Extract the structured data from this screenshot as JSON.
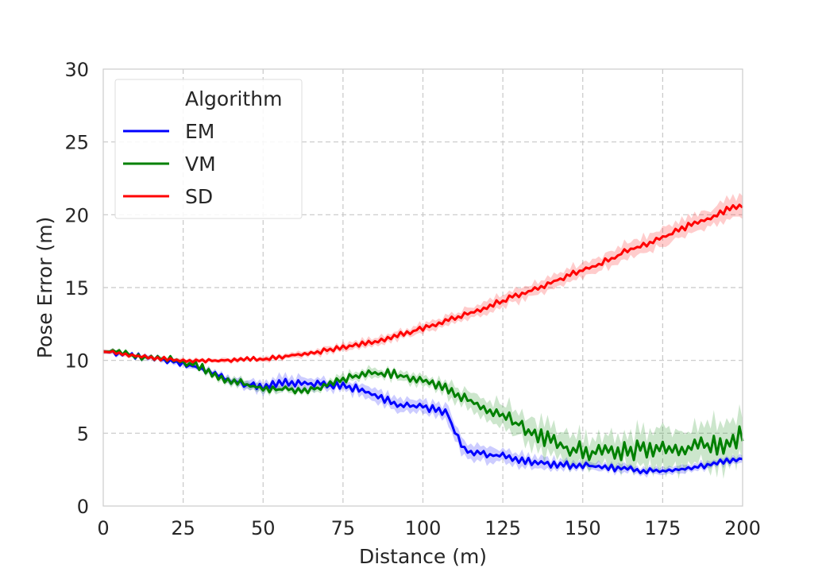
{
  "chart_data": {
    "type": "line",
    "title": "",
    "xlabel": "Distance (m)",
    "ylabel": "Pose Error (m)",
    "xlim": [
      0,
      200
    ],
    "ylim": [
      0,
      30
    ],
    "xticks": [
      0,
      25,
      50,
      75,
      100,
      125,
      150,
      175,
      200
    ],
    "yticks": [
      0,
      5,
      10,
      15,
      20,
      25,
      30
    ],
    "grid": true,
    "legend": {
      "title": "Algorithm",
      "position": "top-left"
    },
    "series": [
      {
        "name": "EM",
        "color": "#0000ff",
        "x": [
          0,
          5,
          10,
          20,
          25,
          30,
          35,
          40,
          45,
          50,
          55,
          60,
          65,
          70,
          75,
          80,
          85,
          90,
          95,
          100,
          105,
          108,
          110,
          112,
          115,
          120,
          125,
          130,
          135,
          140,
          145,
          150,
          155,
          160,
          165,
          170,
          175,
          180,
          185,
          190,
          195,
          200
        ],
        "mean": [
          10.6,
          10.5,
          10.3,
          10.0,
          9.8,
          9.5,
          9.0,
          8.6,
          8.3,
          8.2,
          8.4,
          8.5,
          8.4,
          8.3,
          8.3,
          8.0,
          7.6,
          7.1,
          6.9,
          6.8,
          6.6,
          6.2,
          5.0,
          4.2,
          3.7,
          3.6,
          3.4,
          3.2,
          3.0,
          2.9,
          2.8,
          2.8,
          2.7,
          2.6,
          2.5,
          2.4,
          2.4,
          2.5,
          2.6,
          2.8,
          3.1,
          3.3
        ],
        "band": [
          0.15,
          0.15,
          0.15,
          0.15,
          0.2,
          0.2,
          0.2,
          0.25,
          0.3,
          0.35,
          0.45,
          0.45,
          0.4,
          0.35,
          0.35,
          0.4,
          0.45,
          0.45,
          0.4,
          0.4,
          0.45,
          0.6,
          0.7,
          0.6,
          0.55,
          0.5,
          0.5,
          0.45,
          0.4,
          0.35,
          0.35,
          0.3,
          0.3,
          0.3,
          0.3,
          0.25,
          0.25,
          0.25,
          0.25,
          0.25,
          0.25,
          0.25
        ],
        "noise": 0.35
      },
      {
        "name": "VM",
        "color": "#008000",
        "x": [
          0,
          5,
          10,
          20,
          25,
          30,
          35,
          40,
          45,
          50,
          55,
          60,
          65,
          70,
          75,
          80,
          85,
          90,
          95,
          100,
          105,
          110,
          115,
          120,
          125,
          130,
          135,
          140,
          145,
          150,
          155,
          160,
          165,
          170,
          175,
          180,
          185,
          190,
          195,
          200
        ],
        "mean": [
          10.6,
          10.6,
          10.3,
          10.1,
          9.9,
          9.6,
          9.0,
          8.6,
          8.3,
          8.1,
          8.0,
          8.0,
          8.0,
          8.3,
          8.7,
          9.0,
          9.1,
          9.1,
          8.9,
          8.6,
          8.3,
          7.8,
          7.1,
          6.7,
          6.2,
          5.6,
          5.0,
          4.4,
          4.0,
          3.8,
          3.7,
          3.7,
          3.8,
          3.9,
          4.0,
          4.0,
          4.1,
          4.2,
          4.4,
          4.6
        ],
        "band": [
          0.15,
          0.15,
          0.15,
          0.15,
          0.2,
          0.2,
          0.2,
          0.25,
          0.25,
          0.25,
          0.25,
          0.25,
          0.25,
          0.25,
          0.3,
          0.3,
          0.3,
          0.3,
          0.3,
          0.35,
          0.4,
          0.5,
          0.6,
          0.7,
          0.8,
          0.9,
          1.0,
          1.0,
          1.0,
          1.0,
          1.0,
          1.1,
          1.1,
          1.2,
          1.3,
          1.3,
          1.4,
          1.5,
          1.6,
          1.7
        ],
        "noise": 0.45
      },
      {
        "name": "SD",
        "color": "#ff0000",
        "x": [
          0,
          5,
          10,
          15,
          20,
          25,
          30,
          35,
          40,
          45,
          50,
          55,
          60,
          65,
          70,
          75,
          80,
          85,
          90,
          95,
          100,
          105,
          110,
          115,
          120,
          125,
          130,
          135,
          140,
          145,
          150,
          155,
          160,
          165,
          170,
          175,
          180,
          185,
          190,
          195,
          200
        ],
        "mean": [
          10.6,
          10.5,
          10.3,
          10.2,
          10.1,
          10.0,
          10.0,
          10.0,
          10.0,
          10.1,
          10.1,
          10.2,
          10.4,
          10.5,
          10.7,
          10.9,
          11.1,
          11.3,
          11.6,
          11.9,
          12.2,
          12.5,
          12.9,
          13.3,
          13.7,
          14.1,
          14.5,
          14.9,
          15.3,
          15.8,
          16.2,
          16.6,
          17.1,
          17.6,
          18.0,
          18.4,
          18.9,
          19.4,
          19.8,
          20.3,
          20.7
        ],
        "band": [
          0.15,
          0.15,
          0.15,
          0.15,
          0.15,
          0.15,
          0.15,
          0.15,
          0.15,
          0.15,
          0.15,
          0.2,
          0.2,
          0.2,
          0.25,
          0.25,
          0.25,
          0.3,
          0.3,
          0.3,
          0.35,
          0.35,
          0.35,
          0.4,
          0.4,
          0.4,
          0.45,
          0.45,
          0.45,
          0.5,
          0.5,
          0.5,
          0.55,
          0.55,
          0.55,
          0.6,
          0.6,
          0.6,
          0.65,
          0.65,
          0.65
        ],
        "noise": 0.25
      }
    ]
  }
}
